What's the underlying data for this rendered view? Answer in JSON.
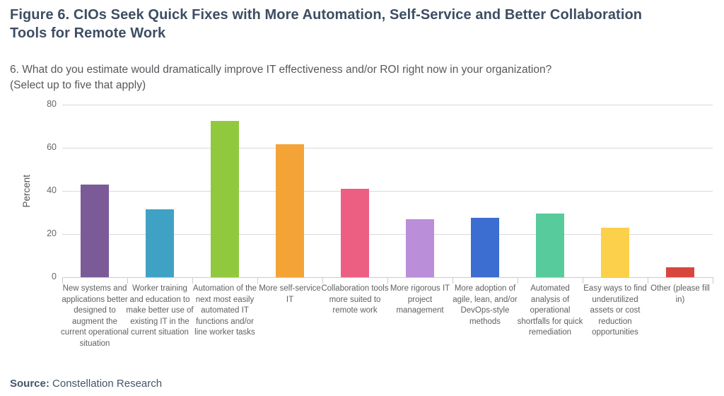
{
  "figure": {
    "title": "Figure 6. CIOs Seek Quick Fixes with More Automation, Self-Service and Better Collaboration Tools for Remote Work",
    "question": "6. What do you estimate would dramatically improve IT effectiveness and/or ROI right now in your organization?\n(Select up to five that apply)",
    "source_label": "Source:",
    "source_text": " Constellation Research"
  },
  "chart_data": {
    "type": "bar",
    "title": "",
    "xlabel": "",
    "ylabel": "Percent",
    "ylim": [
      0,
      80
    ],
    "yticks": [
      0,
      20,
      40,
      60,
      80
    ],
    "grid": true,
    "legend": false,
    "categories": [
      "New systems and applications better designed to augment the current operational situation",
      "Worker training and education to make better use of existing IT in the current situation",
      "Automation of the next most easily automated IT functions and/or line worker tasks",
      "More self-service IT",
      "Collaboration tools more suited to remote work",
      "More rigorous IT project management",
      "More adoption of agile, lean, and/or DevOps-style methods",
      "Automated analysis of operational shortfalls for quick remediation",
      "Easy ways to find underutilized assets or cost reduction opportunities",
      "Other (please fill in)"
    ],
    "values": [
      43,
      31.5,
      72.5,
      61.5,
      41,
      27,
      27.5,
      29.5,
      23,
      4.5
    ],
    "bar_colors": [
      "#7a5b98",
      "#3fa2c4",
      "#90c93e",
      "#f4a437",
      "#ec5f82",
      "#bb8eda",
      "#3b6ed0",
      "#58cb9c",
      "#fcd04b",
      "#d8473e"
    ]
  },
  "colors": {
    "title_text": "#3d4e63",
    "question_text": "#57585c",
    "axis_text": "#666666",
    "gridline": "#d9d9d9",
    "source_text": "#44546a"
  }
}
